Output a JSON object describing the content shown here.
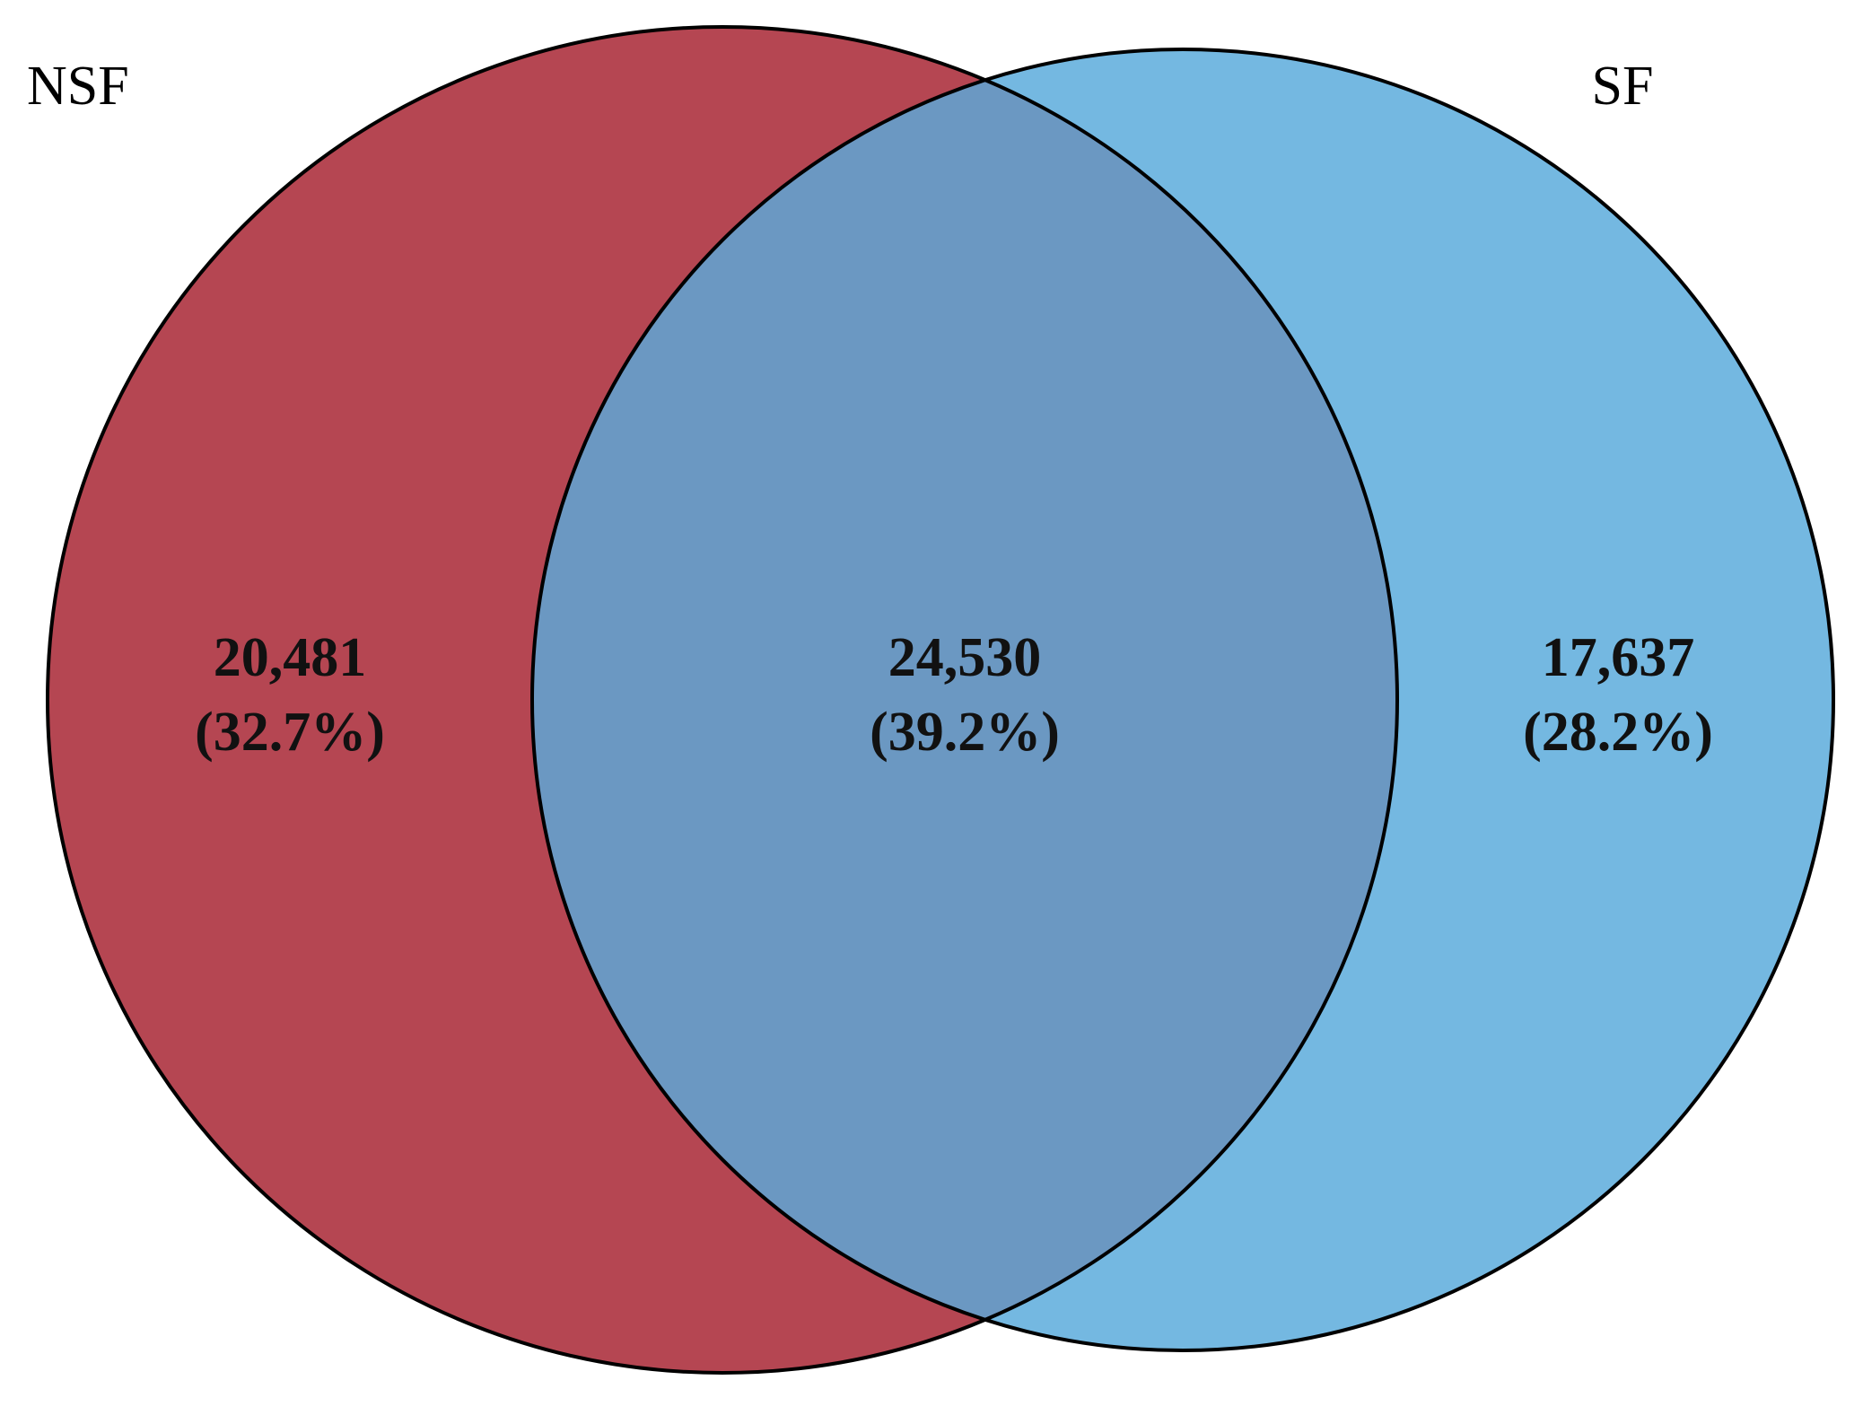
{
  "diagram": {
    "type": "venn-2",
    "sets": [
      {
        "id": "left",
        "label": "NSF",
        "color": "#B54652"
      },
      {
        "id": "right",
        "label": "SF",
        "color": "#74B8E1"
      }
    ],
    "overlap_color": "#6B98C2",
    "outline_color": "#000000",
    "regions": [
      {
        "id": "left_only",
        "count": "20,481",
        "percent": "(32.7%)"
      },
      {
        "id": "both",
        "count": "24,530",
        "percent": "(39.2%)"
      },
      {
        "id": "right_only",
        "count": "17,637",
        "percent": "(28.2%)"
      }
    ]
  }
}
